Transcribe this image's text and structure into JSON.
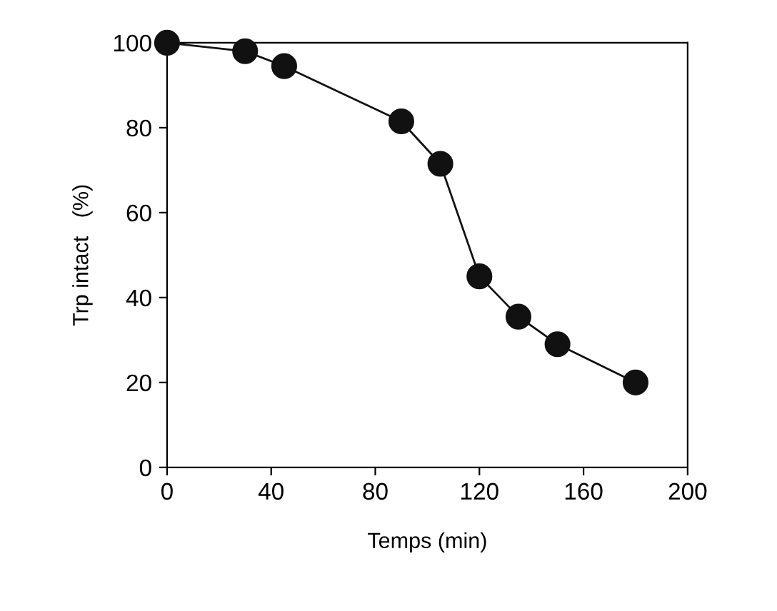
{
  "chart_data": {
    "type": "line",
    "xlabel": "Temps (min)",
    "ylabel": "Trp intact   (%)",
    "x": [
      0,
      30,
      45,
      90,
      105,
      120,
      135,
      150,
      180
    ],
    "series": [
      {
        "color": "#111111",
        "values": [
          100,
          98,
          94.5,
          81.5,
          71.5,
          45,
          35.5,
          29,
          20
        ]
      }
    ],
    "xlim": [
      0,
      200
    ],
    "xticks": [
      0,
      40,
      80,
      120,
      160,
      200
    ],
    "ylim": [
      0,
      100
    ],
    "yticks": [
      0,
      20,
      40,
      60,
      80,
      100
    ],
    "grid": false,
    "legend": false,
    "marker": "circle",
    "line_style": "solid"
  }
}
